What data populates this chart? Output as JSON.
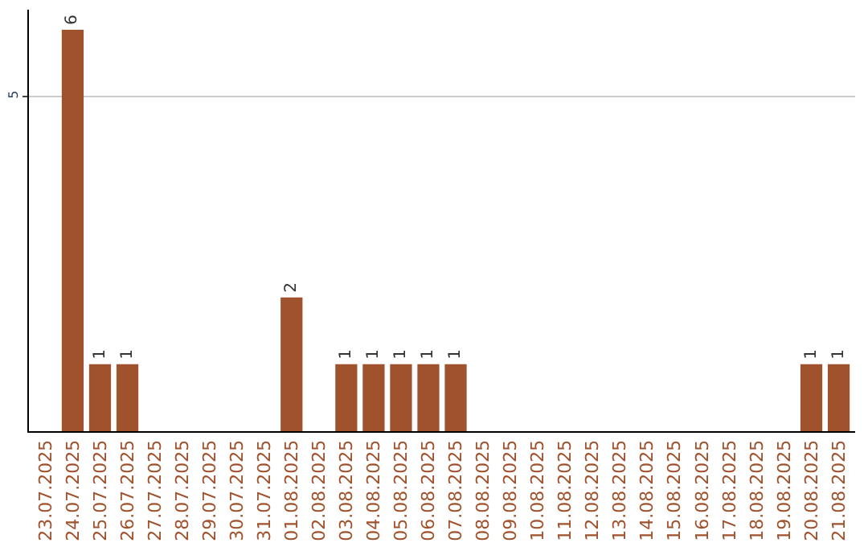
{
  "chart_data": {
    "type": "bar",
    "categories": [
      "23.07.2025",
      "24.07.2025",
      "25.07.2025",
      "26.07.2025",
      "27.07.2025",
      "28.07.2025",
      "29.07.2025",
      "30.07.2025",
      "31.07.2025",
      "01.08.2025",
      "02.08.2025",
      "03.08.2025",
      "04.08.2025",
      "05.08.2025",
      "06.08.2025",
      "07.08.2025",
      "08.08.2025",
      "09.08.2025",
      "10.08.2025",
      "11.08.2025",
      "12.08.2025",
      "13.08.2025",
      "14.08.2025",
      "15.08.2025",
      "16.08.2025",
      "17.08.2025",
      "18.08.2025",
      "19.08.2025",
      "20.08.2025",
      "21.08.2025"
    ],
    "values": [
      0,
      6,
      1,
      1,
      0,
      0,
      0,
      0,
      0,
      2,
      0,
      1,
      1,
      1,
      1,
      1,
      0,
      0,
      0,
      0,
      0,
      0,
      0,
      0,
      0,
      0,
      0,
      0,
      1,
      1
    ],
    "value_labels": [
      null,
      "6",
      "1",
      "1",
      null,
      null,
      null,
      null,
      null,
      "2",
      null,
      "1",
      "1",
      "1",
      "1",
      "1",
      null,
      null,
      null,
      null,
      null,
      null,
      null,
      null,
      null,
      null,
      null,
      null,
      "1",
      "1"
    ],
    "color": "#a0522d",
    "ylim": [
      0,
      6.3
    ],
    "yticks": [
      5
    ],
    "grid": "y"
  }
}
